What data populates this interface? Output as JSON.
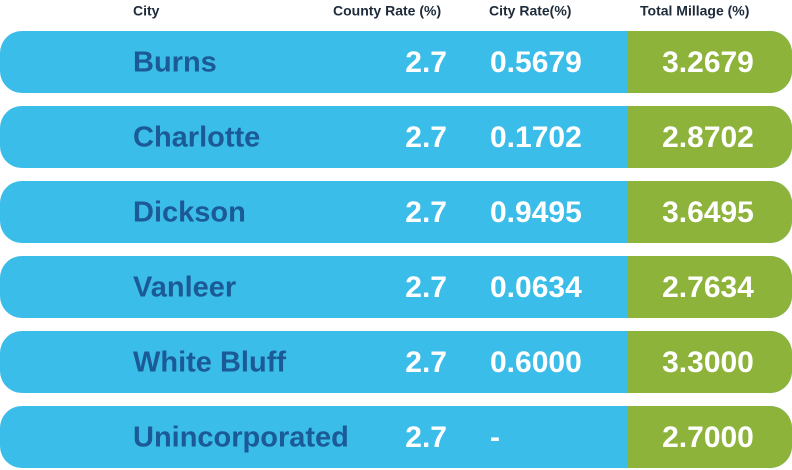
{
  "table": {
    "header": [
      "City",
      "County Rate (%)",
      "City Rate(%)",
      "Total Millage (%)"
    ],
    "rows": [
      [
        "Burns",
        "2.7",
        "0.5679",
        "3.2679"
      ],
      [
        "Charlotte",
        "2.7",
        "0.1702",
        "2.8702"
      ],
      [
        "Dickson",
        "2.7",
        "0.9495",
        "3.6495"
      ],
      [
        "Vanleer",
        "2.7",
        "0.0634",
        "2.7634"
      ],
      [
        "White Bluff",
        "2.7",
        "0.6000",
        "3.3000"
      ],
      [
        "Unincorporated",
        "2.7",
        "-",
        "2.7000"
      ]
    ]
  }
}
